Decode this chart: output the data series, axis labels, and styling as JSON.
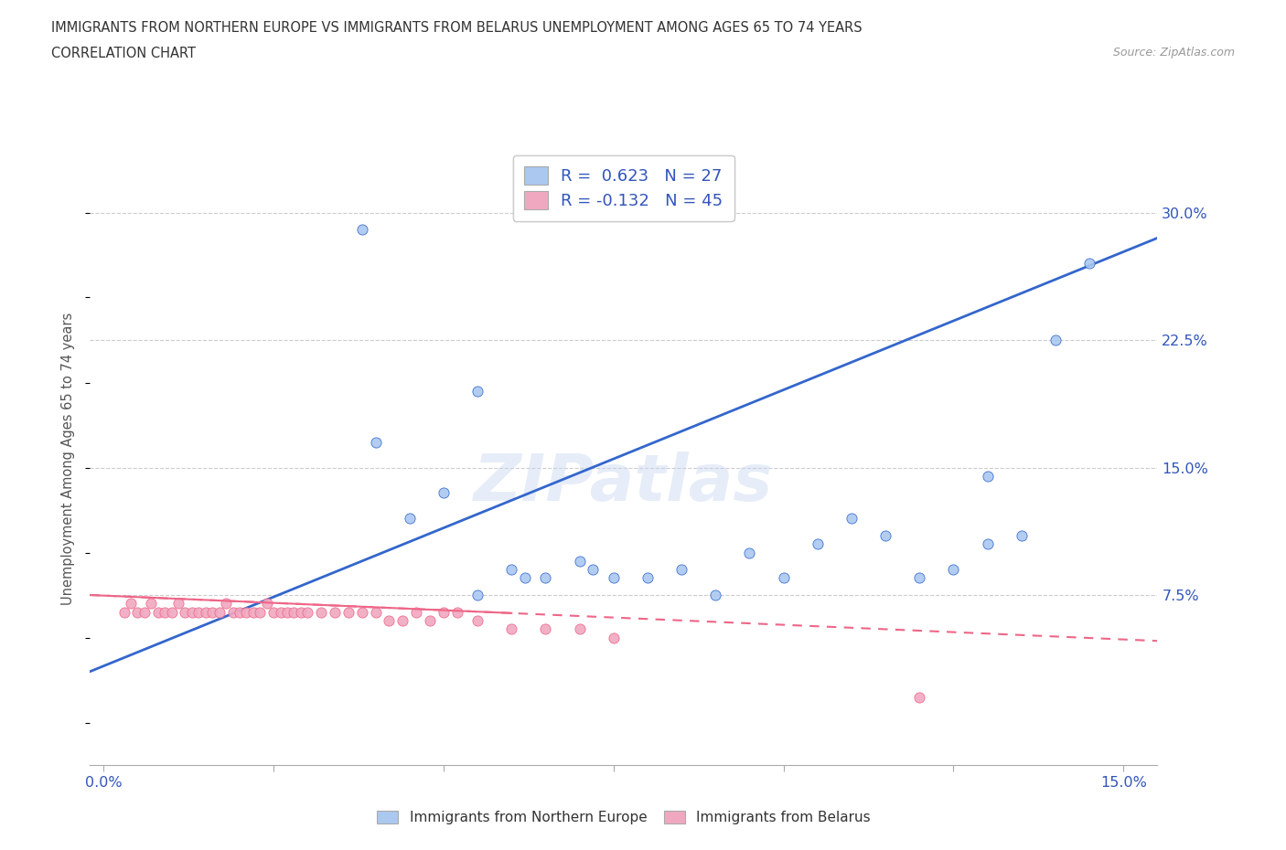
{
  "title_line1": "IMMIGRANTS FROM NORTHERN EUROPE VS IMMIGRANTS FROM BELARUS UNEMPLOYMENT AMONG AGES 65 TO 74 YEARS",
  "title_line2": "CORRELATION CHART",
  "source_text": "Source: ZipAtlas.com",
  "ylabel": "Unemployment Among Ages 65 to 74 years",
  "xlim": [
    -0.002,
    0.155
  ],
  "ylim": [
    -0.025,
    0.335
  ],
  "ytick_values": [
    0.075,
    0.15,
    0.225,
    0.3
  ],
  "ytick_labels": [
    "7.5%",
    "15.0%",
    "22.5%",
    "30.0%"
  ],
  "xtick_positions": [
    0.0,
    0.025,
    0.05,
    0.075,
    0.1,
    0.125,
    0.15
  ],
  "xtick_labels": [
    "0.0%",
    "",
    "",
    "",
    "",
    "",
    "15.0%"
  ],
  "legend1_label": "Immigrants from Northern Europe",
  "legend2_label": "Immigrants from Belarus",
  "r1": "0.623",
  "n1": "27",
  "r2": "-0.132",
  "n2": "45",
  "color_blue": "#aac8f0",
  "color_pink": "#f0a8c0",
  "line_blue": "#3366cc",
  "line_pink": "#ee6688",
  "watermark": "ZIPatlas",
  "blue_x": [
    0.038,
    0.055,
    0.04,
    0.045,
    0.05,
    0.055,
    0.06,
    0.062,
    0.065,
    0.07,
    0.072,
    0.075,
    0.08,
    0.085,
    0.09,
    0.095,
    0.1,
    0.105,
    0.11,
    0.115,
    0.12,
    0.125,
    0.13,
    0.135,
    0.14,
    0.145,
    0.13
  ],
  "blue_y": [
    0.29,
    0.195,
    0.165,
    0.12,
    0.135,
    0.075,
    0.09,
    0.085,
    0.085,
    0.095,
    0.09,
    0.085,
    0.085,
    0.09,
    0.075,
    0.1,
    0.085,
    0.105,
    0.12,
    0.11,
    0.085,
    0.09,
    0.105,
    0.11,
    0.225,
    0.27,
    0.145
  ],
  "pink_x": [
    0.003,
    0.004,
    0.005,
    0.006,
    0.007,
    0.008,
    0.009,
    0.01,
    0.011,
    0.012,
    0.013,
    0.014,
    0.015,
    0.016,
    0.017,
    0.018,
    0.019,
    0.02,
    0.021,
    0.022,
    0.023,
    0.024,
    0.025,
    0.026,
    0.027,
    0.028,
    0.029,
    0.03,
    0.032,
    0.034,
    0.036,
    0.038,
    0.04,
    0.042,
    0.044,
    0.046,
    0.048,
    0.05,
    0.052,
    0.055,
    0.06,
    0.065,
    0.07,
    0.075,
    0.12
  ],
  "pink_y": [
    0.065,
    0.07,
    0.065,
    0.065,
    0.07,
    0.065,
    0.065,
    0.065,
    0.07,
    0.065,
    0.065,
    0.065,
    0.065,
    0.065,
    0.065,
    0.07,
    0.065,
    0.065,
    0.065,
    0.065,
    0.065,
    0.07,
    0.065,
    0.065,
    0.065,
    0.065,
    0.065,
    0.065,
    0.065,
    0.065,
    0.065,
    0.065,
    0.065,
    0.06,
    0.06,
    0.065,
    0.06,
    0.065,
    0.065,
    0.06,
    0.055,
    0.055,
    0.055,
    0.05,
    0.015
  ],
  "blue_line_x0": -0.002,
  "blue_line_x1": 0.155,
  "blue_line_y0": 0.03,
  "blue_line_y1": 0.285,
  "pink_line_x0": -0.002,
  "pink_line_x1": 0.155,
  "pink_line_y0": 0.075,
  "pink_line_y1": 0.048
}
